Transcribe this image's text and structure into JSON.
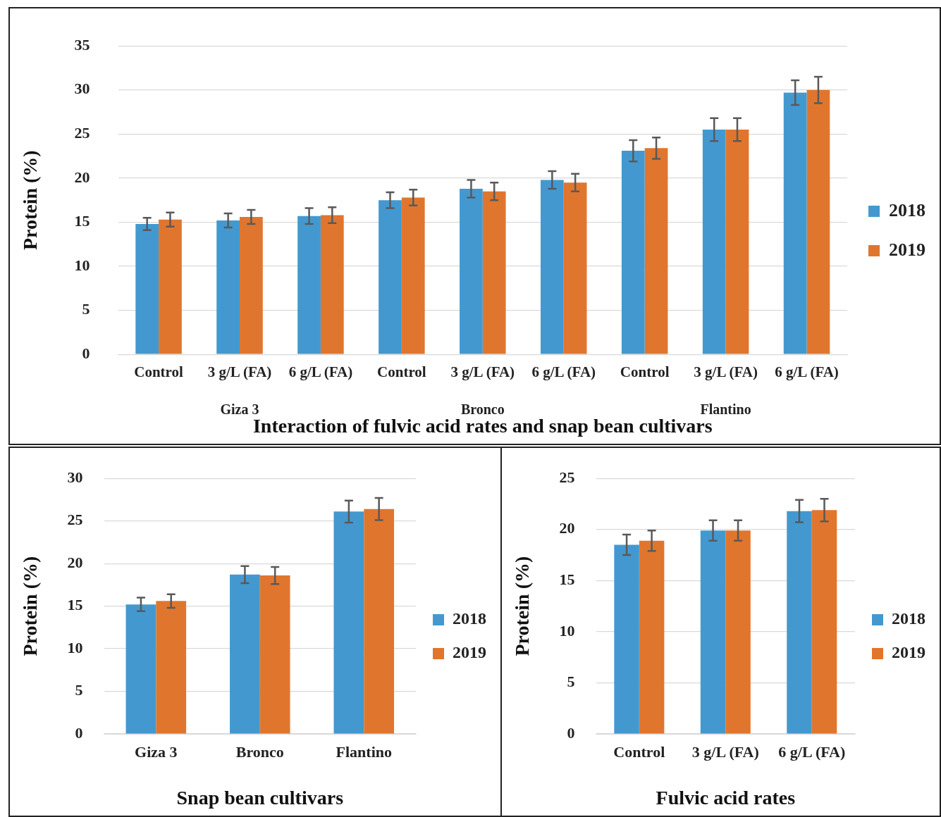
{
  "chart_data": [
    {
      "type": "bar",
      "xlabel": "Interaction of fulvic acid rates and snap bean cultivars",
      "ylabel": "Protein (%)",
      "categories": [
        "Control",
        "3 g/L (FA)",
        "6 g/L (FA)",
        "Control",
        "3 g/L (FA)",
        "6 g/L (FA)",
        "Control",
        "3 g/L (FA)",
        "6 g/L (FA)"
      ],
      "series": [
        {
          "name": "2018",
          "color": "#4399cf",
          "values": [
            14.8,
            15.2,
            15.7,
            17.5,
            18.8,
            19.8,
            23.1,
            25.5,
            29.7
          ],
          "errors": [
            0.7,
            0.8,
            0.9,
            0.9,
            1.0,
            1.0,
            1.2,
            1.3,
            1.4
          ]
        },
        {
          "name": "2019",
          "color": "#e0762e",
          "values": [
            15.3,
            15.6,
            15.8,
            17.8,
            18.5,
            19.5,
            23.4,
            25.5,
            30.0
          ],
          "errors": [
            0.8,
            0.8,
            0.9,
            0.9,
            1.0,
            1.0,
            1.2,
            1.3,
            1.5
          ]
        }
      ],
      "annotations": [
        "Giza 3",
        "Bronco",
        "Flantino"
      ],
      "ylim": [
        0,
        35
      ],
      "yticks": [
        0,
        5,
        10,
        15,
        20,
        25,
        30,
        35
      ],
      "grid": "y",
      "legend": "right"
    },
    {
      "type": "bar",
      "xlabel": "Snap bean cultivars",
      "ylabel": "Protein (%)",
      "categories": [
        "Giza 3",
        "Bronco",
        "Flantino"
      ],
      "series": [
        {
          "name": "2018",
          "color": "#4399cf",
          "values": [
            15.2,
            18.7,
            26.1
          ],
          "errors": [
            0.8,
            1.0,
            1.3
          ]
        },
        {
          "name": "2019",
          "color": "#e0762e",
          "values": [
            15.6,
            18.6,
            26.4
          ],
          "errors": [
            0.8,
            1.0,
            1.3
          ]
        }
      ],
      "ylim": [
        0,
        30
      ],
      "yticks": [
        0,
        5,
        10,
        15,
        20,
        25,
        30
      ],
      "grid": "y",
      "legend": "right"
    },
    {
      "type": "bar",
      "xlabel": "Fulvic acid rates",
      "ylabel": "Protein (%)",
      "categories": [
        "Control",
        "3 g/L (FA)",
        "6 g/L (FA)"
      ],
      "series": [
        {
          "name": "2018",
          "color": "#4399cf",
          "values": [
            18.5,
            19.9,
            21.8
          ],
          "errors": [
            1.0,
            1.0,
            1.1
          ]
        },
        {
          "name": "2019",
          "color": "#e0762e",
          "values": [
            18.9,
            19.9,
            21.9
          ],
          "errors": [
            1.0,
            1.0,
            1.1
          ]
        }
      ],
      "ylim": [
        0,
        25
      ],
      "yticks": [
        0,
        5,
        10,
        15,
        20,
        25
      ],
      "grid": "y",
      "legend": "right"
    }
  ]
}
